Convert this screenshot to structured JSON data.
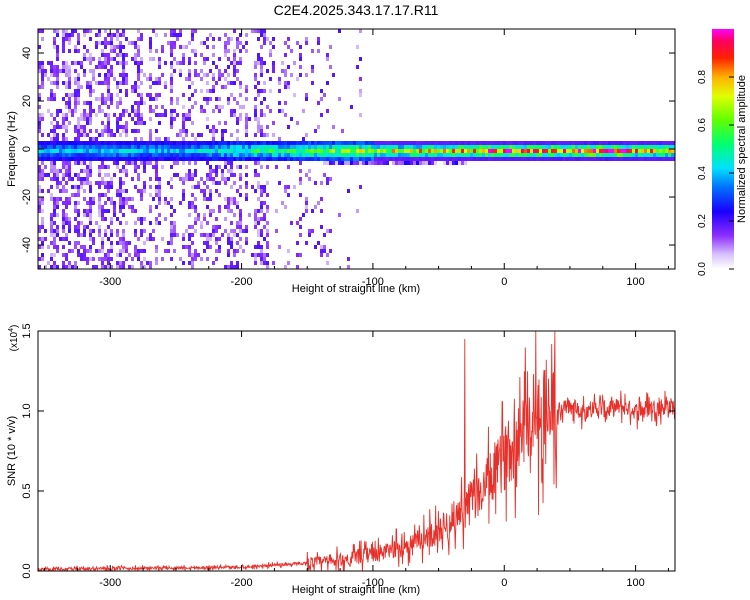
{
  "figure_title": "C2E4.2025.343.17.17.R11",
  "chart_data": [
    {
      "type": "heatmap",
      "title": "",
      "xlabel": "Height of straight line (km)",
      "ylabel": "Frequency (Hz)",
      "xlim": [
        -355,
        130
      ],
      "ylim": [
        -50,
        50
      ],
      "xticks": [
        -300,
        -200,
        -100,
        0,
        100
      ],
      "xtick_labels": [
        "-300",
        "-200",
        "-100",
        "0",
        "100"
      ],
      "yticks": [
        -40,
        -20,
        0,
        20,
        40
      ],
      "ytick_labels": [
        "-40",
        "-20",
        "0",
        "20",
        "40"
      ],
      "colorbar": {
        "label": "Normalized spectral amplitude",
        "range": [
          0,
          1
        ],
        "ticks": [
          0.0,
          0.2,
          0.4,
          0.6,
          0.8
        ],
        "tick_labels": [
          "0.0",
          "0.2",
          "0.4",
          "0.6",
          "0.8"
        ],
        "colormap": [
          "#ffffff",
          "#e8d6ff",
          "#8b2cff",
          "#0000ff",
          "#00c0ff",
          "#00ff80",
          "#80ff00",
          "#ffff00",
          "#ff8000",
          "#ff0000",
          "#ff00ff"
        ]
      },
      "ridge_frequency_hz": 0,
      "ridge": [
        {
          "x": -280,
          "amp": 0.3
        },
        {
          "x": -240,
          "amp": 0.3
        },
        {
          "x": -200,
          "amp": 0.4
        },
        {
          "x": -150,
          "amp": 0.5
        },
        {
          "x": -100,
          "amp": 0.6
        },
        {
          "x": -50,
          "amp": 0.7
        },
        {
          "x": 0,
          "amp": 0.8
        },
        {
          "x": 50,
          "amp": 0.75
        },
        {
          "x": 80,
          "amp": 0.95
        },
        {
          "x": 100,
          "amp": 0.7
        },
        {
          "x": 130,
          "amp": 0.7
        }
      ]
    },
    {
      "type": "line",
      "title": "",
      "xlabel": "Height of straight line (km)",
      "ylabel": "SNR (10 * v/v)",
      "y_multiplier_label": "(x10",
      "y_multiplier_exp": "4",
      "xlim": [
        -355,
        130
      ],
      "ylim": [
        0,
        1.5
      ],
      "xticks": [
        -300,
        -200,
        -100,
        0,
        100
      ],
      "xtick_labels": [
        "-300",
        "-200",
        "-100",
        "0",
        "100"
      ],
      "yticks": [
        0.0,
        0.5,
        1.0,
        1.5
      ],
      "ytick_labels": [
        "0.0",
        "0.5",
        "1.0",
        "1.5"
      ],
      "series": [
        {
          "color": "#e8302a",
          "x": [
            -355,
            -300,
            -250,
            -200,
            -170,
            -150,
            -130,
            -110,
            -90,
            -70,
            -50,
            -40,
            -30,
            -20,
            -10,
            0,
            10,
            20,
            30,
            40,
            50,
            60,
            70,
            80,
            90,
            100,
            110,
            120,
            130
          ],
          "y": [
            0.01,
            0.015,
            0.02,
            0.025,
            0.04,
            0.05,
            0.06,
            0.09,
            0.12,
            0.17,
            0.25,
            0.32,
            0.4,
            0.48,
            0.58,
            0.7,
            0.85,
            0.98,
            1.02,
            1.0,
            1.03,
            1.0,
            1.02,
            1.01,
            1.03,
            1.0,
            1.02,
            1.03,
            1.03
          ]
        }
      ],
      "spikes": [
        {
          "x": -30,
          "y": 1.45
        },
        {
          "x": 24,
          "y": 1.5
        },
        {
          "x": 32,
          "y": 1.32
        },
        {
          "x": 26,
          "y": 0.35
        }
      ]
    }
  ]
}
